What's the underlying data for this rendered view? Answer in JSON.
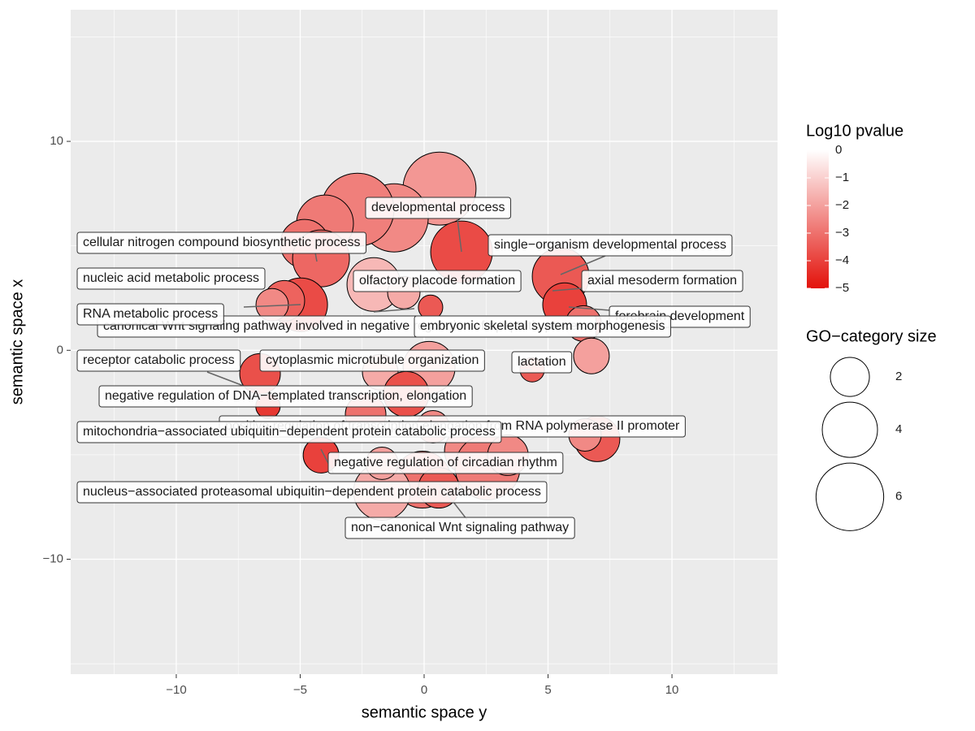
{
  "chart_data": {
    "type": "bubble",
    "x_label": "semantic space y",
    "y_label": "semantic space x",
    "xlim": [
      -14.26,
      14.26
    ],
    "ylim": [
      -15.5,
      16.3
    ],
    "xticks": [
      {
        "value": -10,
        "label": "−10"
      },
      {
        "value": -5,
        "label": "−5"
      },
      0,
      5,
      10
    ],
    "yticks": [
      {
        "value": -10,
        "label": "−10"
      },
      0,
      10
    ],
    "grid": true,
    "x": [
      0.62,
      -1.21,
      -2.69,
      -4.0,
      -4.82,
      -4.16,
      1.51,
      -2.03,
      -4.98,
      -5.64,
      -6.13,
      0.26,
      -0.82,
      5.51,
      5.67,
      6.43,
      6.75,
      4.36,
      0.2,
      -1.77,
      -6.62,
      -0.72,
      -6.3,
      -2.36,
      0.36,
      6.98,
      6.49,
      -4.16,
      1.74,
      2.56,
      3.38,
      -0.07,
      -1.7,
      -1.7,
      0.59
    ],
    "y": [
      7.74,
      6.34,
      6.73,
      6.07,
      5.1,
      4.4,
      4.71,
      3.15,
      2.18,
      2.37,
      2.18,
      2.06,
      2.76,
      3.54,
      2.18,
      1.28,
      -0.27,
      -0.93,
      -0.82,
      -1.05,
      -1.13,
      -2.1,
      -2.68,
      -3.07,
      -3.66,
      -4.24,
      -4.05,
      -5.02,
      -4.82,
      -5.6,
      -5.02,
      -6.19,
      -6.77,
      -5.41,
      -6.58
    ],
    "size": [
      7.0,
      6.1,
      7.0,
      4.24,
      3.11,
      4.24,
      5.0,
      3.77,
      3.77,
      2.16,
      1.38,
      0.78,
      1.38,
      4.24,
      2.52,
      1.67,
      1.67,
      0.78,
      3.54,
      1.67,
      2.16,
      2.71,
      0.78,
      2.16,
      1.38,
      2.71,
      1.38,
      1.67,
      2.71,
      5.54,
      2.16,
      4.24,
      4.24,
      1.38,
      2.16
    ],
    "log10_pvalue": [
      -2.2,
      -2.5,
      -2.7,
      -2.8,
      -3.0,
      -3.2,
      -3.8,
      -1.5,
      -3.8,
      -3.3,
      -2.5,
      -3.5,
      -1.8,
      -3.5,
      -4.0,
      -3.0,
      -2.0,
      -3.5,
      -2.0,
      -1.8,
      -3.7,
      -3.7,
      -4.2,
      -3.0,
      -2.5,
      -3.5,
      -2.5,
      -4.0,
      -2.5,
      -2.8,
      -2.5,
      -3.0,
      -1.8,
      -2.0,
      -3.5
    ],
    "labels": [
      "canonical Wnt signaling pathway involved in negative regulation of apoptotic process",
      "positive regulation of transcription elongation from RNA polymerase II promoter",
      "developmental process",
      "cellular nitrogen compound biosynthetic process",
      "single−organism developmental process",
      "nucleic acid metabolic process",
      "olfactory placode formation",
      "axial mesoderm formation",
      "RNA metabolic process",
      "forebrain development",
      "embryonic skeletal system morphogenesis",
      "receptor catabolic process",
      "cytoplasmic microtubule organization",
      "lactation",
      "negative regulation of DNA−templated transcription, elongation",
      "mitochondria−associated ubiquitin−dependent protein catabolic process",
      "negative regulation of circadian rhythm",
      "nucleus−associated proteasomal ubiquitin−dependent protein catabolic process",
      "non−canonical Wnt signaling pathway"
    ],
    "color_legend": {
      "title": "Log10 pvalue",
      "limits": [
        -5,
        0
      ],
      "low": "#e3120b",
      "high": "#ffffff",
      "ticks": [
        0,
        {
          "value": -1,
          "label": "−1"
        },
        {
          "value": -2,
          "label": "−2"
        },
        {
          "value": -3,
          "label": "−3"
        },
        {
          "value": -4,
          "label": "−4"
        },
        {
          "value": -5,
          "label": "−5"
        }
      ]
    },
    "size_legend": {
      "title": "GO−category size",
      "values": [
        2,
        4,
        6
      ]
    }
  }
}
